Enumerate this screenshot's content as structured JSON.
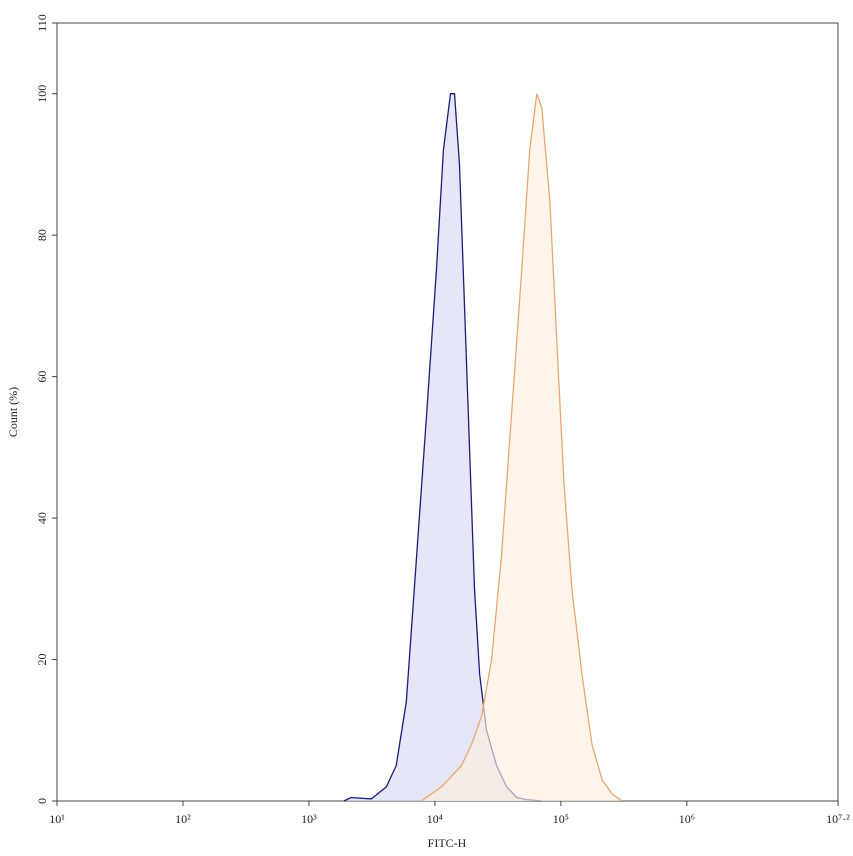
{
  "chart_data": {
    "type": "histogram-overlay",
    "x_label": "FITC-H",
    "y_label": "Count (%)",
    "x_log_scale": true,
    "xlim": [
      10,
      15848932
    ],
    "xticks": [
      {
        "value": 10,
        "label": "10¹"
      },
      {
        "value": 100,
        "label": "10²"
      },
      {
        "value": 1000,
        "label": "10³"
      },
      {
        "value": 10000,
        "label": "10⁴"
      },
      {
        "value": 100000,
        "label": "10⁵"
      },
      {
        "value": 1000000,
        "label": "10⁶"
      },
      {
        "value": 15848932,
        "label": "10⁷·²"
      }
    ],
    "ylim": [
      0,
      110
    ],
    "yticks": [
      0,
      20,
      40,
      60,
      80,
      100,
      110
    ],
    "series": [
      {
        "color": "#1c1c78",
        "fill": "#d9d9f6",
        "x": [
          1900,
          2160,
          3120,
          4110,
          4930,
          5930,
          7120,
          8550,
          10280,
          11690,
          13300,
          14300,
          15670,
          17180,
          18830,
          20640,
          22630,
          25700,
          30900,
          37150,
          44600,
          53600,
          70600
        ],
        "values": [
          0,
          0.5,
          0.3,
          2,
          5,
          14,
          34,
          54,
          75,
          92,
          100,
          100,
          90,
          70,
          50,
          30,
          18,
          10,
          5,
          2,
          0.5,
          0.2,
          0
        ]
      },
      {
        "color": "#e8a870",
        "fill": "#fdeedd",
        "x": [
          7800,
          11270,
          16260,
          19540,
          23500,
          28200,
          33900,
          40700,
          48900,
          56600,
          64400,
          70600,
          81700,
          92900,
          105600,
          122400,
          147000,
          176600,
          212300,
          254900,
          306300
        ],
        "values": [
          0,
          2,
          5,
          8,
          12,
          20,
          35,
          55,
          75,
          92,
          100,
          98,
          85,
          65,
          45,
          30,
          18,
          8,
          3,
          1,
          0
        ]
      }
    ]
  }
}
